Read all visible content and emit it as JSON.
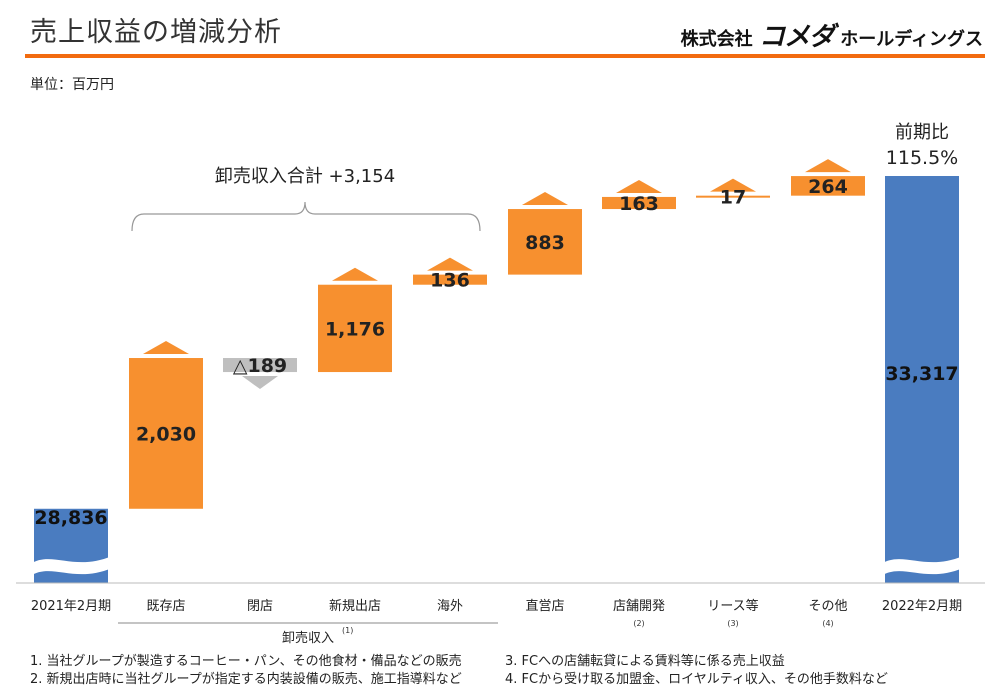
{
  "header": {
    "title": "売上収益の増減分析",
    "company_prefix": "株式会社",
    "company_brand": "コメダ",
    "company_suffix": "ホールディングス"
  },
  "unit_label": "単位：百万円",
  "colors": {
    "base_bar": "#4a7cc0",
    "increase_bar": "#f7902f",
    "decrease_bar": "#bfbfbf",
    "rule": "#f26b0f"
  },
  "chart_data": {
    "type": "waterfall",
    "title": "",
    "xlabel": "",
    "ylabel": "",
    "axis_break": true,
    "categories": [
      "2021年2月期",
      "既存店",
      "閉店",
      "新規出店",
      "海外",
      "直営店",
      "店舗開発",
      "リース等",
      "その他",
      "2022年2月期"
    ],
    "category_notes": [
      "",
      "",
      "",
      "",
      "",
      "",
      "(2)",
      "(3)",
      "(4)",
      ""
    ],
    "values": [
      28836,
      2030,
      -189,
      1176,
      136,
      883,
      163,
      17,
      264,
      33317
    ],
    "value_labels": [
      "28,836",
      "2,030",
      "△189",
      "1,176",
      "136",
      "883",
      "163",
      "17",
      "264",
      "33,317"
    ],
    "kinds": [
      "total",
      "increase",
      "decrease",
      "increase",
      "increase",
      "increase",
      "increase",
      "increase",
      "increase",
      "total"
    ],
    "group_bracket": {
      "label": "卸売収入合計 +3,154",
      "from_index": 1,
      "to_index": 4
    },
    "group_axis_label": "卸売収入",
    "group_axis_note": "(1)",
    "ratio_label": "前期比",
    "ratio_value": "115.5%"
  },
  "footnotes": {
    "left": [
      "1. 当社グループが製造するコーヒー・パン、その他食材・備品などの販売",
      "2. 新規出店時に当社グループが指定する内装設備の販売、施工指導料など"
    ],
    "right": [
      "3. FCへの店舗転貸による賃料等に係る売上収益",
      "4. FCから受け取る加盟金、ロイヤルティ収入、その他手数料など"
    ]
  }
}
